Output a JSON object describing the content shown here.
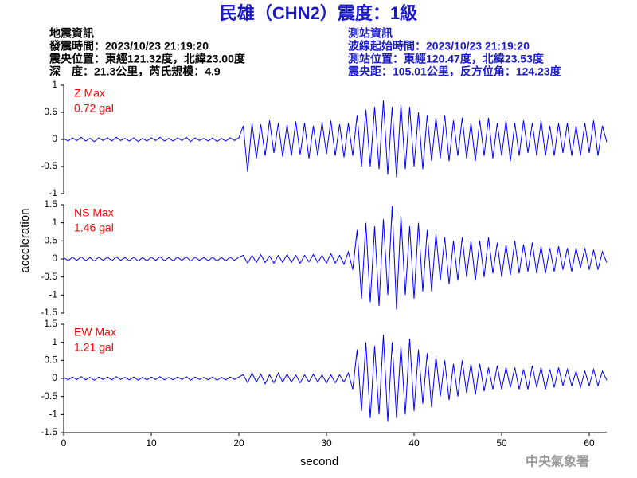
{
  "header": {
    "title": "民雄（CHN2）震度：1級",
    "event_info": [
      "地震資訊",
      "發震時間：2023/10/23 21:19:20",
      "震央位置：東經121.32度，北緯23.00度",
      "深　度：21.3公里，芮氏規模：4.9"
    ],
    "station_info": [
      "測站資訊",
      "波線起始時間：2023/10/23 21:19:20",
      "測站位置：東經120.47度，北緯23.53度",
      "震央距：105.01公里，反方位角：124.23度"
    ]
  },
  "ylabel": "acceleration",
  "watermark": "中央氣象署",
  "chart_data": [
    {
      "type": "line",
      "label": "Z Max",
      "max_label": "0.72 gal",
      "color": "#0000ff",
      "label_color": "#ff0000",
      "xlim": [
        0,
        62
      ],
      "ylim": [
        -1,
        1
      ],
      "yticks": [
        -1,
        -0.5,
        0,
        0.5,
        1
      ],
      "x": [
        0,
        0.5,
        1,
        1.5,
        2,
        2.5,
        3,
        3.5,
        4,
        4.5,
        5,
        5.5,
        6,
        6.5,
        7,
        7.5,
        8,
        8.5,
        9,
        9.5,
        10,
        10.5,
        11,
        11.5,
        12,
        12.5,
        13,
        13.5,
        14,
        14.5,
        15,
        15.5,
        16,
        16.5,
        17,
        17.5,
        18,
        18.5,
        19,
        19.5,
        20,
        20.5,
        21,
        21.5,
        22,
        22.5,
        23,
        23.5,
        24,
        24.5,
        25,
        25.5,
        26,
        26.5,
        27,
        27.5,
        28,
        28.5,
        29,
        29.5,
        30,
        30.5,
        31,
        31.5,
        32,
        32.5,
        33,
        33.5,
        34,
        34.5,
        35,
        35.5,
        36,
        36.5,
        37,
        37.5,
        38,
        38.5,
        39,
        39.5,
        40,
        40.5,
        41,
        41.5,
        42,
        42.5,
        43,
        43.5,
        44,
        44.5,
        45,
        45.5,
        46,
        46.5,
        47,
        47.5,
        48,
        48.5,
        49,
        49.5,
        50,
        50.5,
        51,
        51.5,
        52,
        52.5,
        53,
        53.5,
        54,
        54.5,
        55,
        55.5,
        56,
        56.5,
        57,
        57.5,
        58,
        58.5,
        59,
        59.5,
        60,
        60.5,
        61,
        61.5,
        62
      ],
      "values": [
        0.02,
        -0.03,
        0.03,
        -0.02,
        0.04,
        -0.03,
        0.02,
        -0.04,
        0.03,
        -0.02,
        0.03,
        -0.03,
        0.04,
        -0.02,
        0.02,
        -0.03,
        0.03,
        -0.04,
        0.02,
        -0.03,
        0.03,
        -0.02,
        0.04,
        -0.03,
        0.02,
        -0.03,
        0.03,
        -0.02,
        0.04,
        -0.04,
        0.03,
        -0.02,
        0.02,
        -0.03,
        0.03,
        -0.04,
        0.02,
        -0.03,
        0.03,
        -0.02,
        0.03,
        0.25,
        -0.6,
        0.3,
        -0.35,
        0.28,
        -0.3,
        0.35,
        -0.25,
        0.3,
        -0.32,
        0.27,
        -0.3,
        0.33,
        -0.28,
        0.3,
        -0.35,
        0.25,
        -0.3,
        0.32,
        -0.27,
        0.35,
        -0.3,
        0.28,
        -0.33,
        0.3,
        -0.3,
        0.45,
        -0.5,
        0.55,
        -0.5,
        0.6,
        -0.55,
        0.72,
        -0.65,
        0.6,
        -0.7,
        0.65,
        -0.55,
        0.6,
        -0.5,
        0.5,
        -0.55,
        0.45,
        -0.4,
        0.4,
        -0.35,
        0.45,
        -0.4,
        0.35,
        -0.3,
        0.4,
        -0.35,
        0.3,
        -0.4,
        0.35,
        -0.3,
        0.4,
        -0.35,
        0.3,
        -0.3,
        0.35,
        -0.4,
        0.3,
        -0.3,
        0.35,
        -0.25,
        0.3,
        -0.3,
        0.35,
        -0.3,
        0.25,
        -0.3,
        0.3,
        -0.25,
        0.3,
        -0.3,
        0.25,
        -0.3,
        0.3,
        -0.25,
        0.35,
        -0.3,
        0.25,
        -0.05
      ]
    },
    {
      "type": "line",
      "label": "NS Max",
      "max_label": "1.46 gal",
      "color": "#0000ff",
      "label_color": "#ff0000",
      "xlim": [
        0,
        62
      ],
      "ylim": [
        -1.5,
        1.5
      ],
      "yticks": [
        -1.5,
        -1,
        -0.5,
        0,
        0.5,
        1,
        1.5
      ],
      "x": [
        0,
        0.5,
        1,
        1.5,
        2,
        2.5,
        3,
        3.5,
        4,
        4.5,
        5,
        5.5,
        6,
        6.5,
        7,
        7.5,
        8,
        8.5,
        9,
        9.5,
        10,
        10.5,
        11,
        11.5,
        12,
        12.5,
        13,
        13.5,
        14,
        14.5,
        15,
        15.5,
        16,
        16.5,
        17,
        17.5,
        18,
        18.5,
        19,
        19.5,
        20,
        20.5,
        21,
        21.5,
        22,
        22.5,
        23,
        23.5,
        24,
        24.5,
        25,
        25.5,
        26,
        26.5,
        27,
        27.5,
        28,
        28.5,
        29,
        29.5,
        30,
        30.5,
        31,
        31.5,
        32,
        32.5,
        33,
        33.5,
        34,
        34.5,
        35,
        35.5,
        36,
        36.5,
        37,
        37.5,
        38,
        38.5,
        39,
        39.5,
        40,
        40.5,
        41,
        41.5,
        42,
        42.5,
        43,
        43.5,
        44,
        44.5,
        45,
        45.5,
        46,
        46.5,
        47,
        47.5,
        48,
        48.5,
        49,
        49.5,
        50,
        50.5,
        51,
        51.5,
        52,
        52.5,
        53,
        53.5,
        54,
        54.5,
        55,
        55.5,
        56,
        56.5,
        57,
        57.5,
        58,
        58.5,
        59,
        59.5,
        60,
        60.5,
        61,
        61.5,
        62
      ],
      "values": [
        0.04,
        -0.05,
        0.05,
        -0.04,
        0.06,
        -0.05,
        0.04,
        -0.06,
        0.05,
        -0.04,
        0.05,
        -0.05,
        0.06,
        -0.04,
        0.04,
        -0.05,
        0.05,
        -0.06,
        0.04,
        -0.05,
        0.05,
        -0.04,
        0.06,
        -0.05,
        0.04,
        -0.05,
        0.05,
        -0.04,
        0.06,
        -0.06,
        0.05,
        -0.04,
        0.04,
        -0.05,
        0.05,
        -0.06,
        0.04,
        -0.05,
        0.05,
        -0.04,
        0.05,
        0.1,
        -0.12,
        0.1,
        -0.1,
        0.12,
        -0.1,
        0.08,
        -0.12,
        0.1,
        -0.1,
        0.12,
        -0.1,
        0.1,
        -0.12,
        0.1,
        -0.08,
        0.12,
        -0.1,
        0.1,
        -0.12,
        0.15,
        -0.12,
        0.1,
        -0.15,
        0.2,
        -0.3,
        0.8,
        -1.1,
        1.0,
        -1.2,
        0.9,
        -1.3,
        1.1,
        -1.0,
        1.46,
        -1.4,
        1.2,
        -1.0,
        0.9,
        -1.1,
        1.0,
        -0.9,
        0.8,
        -0.9,
        0.7,
        -0.6,
        0.6,
        -0.7,
        0.5,
        -0.6,
        0.6,
        -0.5,
        0.5,
        -0.6,
        0.5,
        -0.5,
        0.6,
        -0.4,
        0.45,
        -0.5,
        0.4,
        -0.45,
        0.5,
        -0.4,
        0.4,
        -0.35,
        0.45,
        -0.4,
        0.35,
        -0.4,
        0.3,
        -0.35,
        0.35,
        -0.3,
        0.3,
        -0.35,
        0.3,
        -0.25,
        0.3,
        -0.3,
        0.25,
        -0.3,
        0.2,
        -0.1
      ]
    },
    {
      "type": "line",
      "label": "EW Max",
      "max_label": "1.21 gal",
      "color": "#0000ff",
      "label_color": "#ff0000",
      "xlabel": "second",
      "xlim": [
        0,
        62
      ],
      "xticks": [
        0,
        10,
        20,
        30,
        40,
        50,
        60
      ],
      "ylim": [
        -1.5,
        1.5
      ],
      "yticks": [
        -1.5,
        -1,
        -0.5,
        0,
        0.5,
        1,
        1.5
      ],
      "x": [
        0,
        0.5,
        1,
        1.5,
        2,
        2.5,
        3,
        3.5,
        4,
        4.5,
        5,
        5.5,
        6,
        6.5,
        7,
        7.5,
        8,
        8.5,
        9,
        9.5,
        10,
        10.5,
        11,
        11.5,
        12,
        12.5,
        13,
        13.5,
        14,
        14.5,
        15,
        15.5,
        16,
        16.5,
        17,
        17.5,
        18,
        18.5,
        19,
        19.5,
        20,
        20.5,
        21,
        21.5,
        22,
        22.5,
        23,
        23.5,
        24,
        24.5,
        25,
        25.5,
        26,
        26.5,
        27,
        27.5,
        28,
        28.5,
        29,
        29.5,
        30,
        30.5,
        31,
        31.5,
        32,
        32.5,
        33,
        33.5,
        34,
        34.5,
        35,
        35.5,
        36,
        36.5,
        37,
        37.5,
        38,
        38.5,
        39,
        39.5,
        40,
        40.5,
        41,
        41.5,
        42,
        42.5,
        43,
        43.5,
        44,
        44.5,
        45,
        45.5,
        46,
        46.5,
        47,
        47.5,
        48,
        48.5,
        49,
        49.5,
        50,
        50.5,
        51,
        51.5,
        52,
        52.5,
        53,
        53.5,
        54,
        54.5,
        55,
        55.5,
        56,
        56.5,
        57,
        57.5,
        58,
        58.5,
        59,
        59.5,
        60,
        60.5,
        61,
        61.5,
        62
      ],
      "values": [
        0.03,
        -0.04,
        0.04,
        -0.03,
        0.05,
        -0.04,
        0.03,
        -0.05,
        0.04,
        -0.03,
        0.04,
        -0.04,
        0.05,
        -0.03,
        0.03,
        -0.04,
        0.04,
        -0.05,
        0.03,
        -0.04,
        0.04,
        -0.03,
        0.05,
        -0.04,
        0.03,
        -0.04,
        0.04,
        -0.03,
        0.05,
        -0.05,
        0.04,
        -0.03,
        0.03,
        -0.04,
        0.04,
        -0.05,
        0.03,
        -0.04,
        0.04,
        -0.03,
        0.04,
        0.1,
        -0.12,
        0.15,
        -0.1,
        0.12,
        -0.15,
        0.1,
        -0.12,
        0.15,
        -0.1,
        0.12,
        -0.1,
        0.1,
        -0.12,
        0.1,
        -0.1,
        0.12,
        -0.1,
        0.1,
        -0.12,
        0.1,
        -0.12,
        0.1,
        -0.1,
        0.15,
        -0.3,
        0.8,
        -0.9,
        1.0,
        -1.1,
        0.9,
        -1.0,
        1.21,
        -1.2,
        1.0,
        -1.1,
        0.9,
        -1.0,
        1.1,
        -0.9,
        0.8,
        -0.7,
        0.7,
        -0.8,
        0.6,
        -0.5,
        0.5,
        -0.6,
        0.4,
        -0.5,
        0.5,
        -0.4,
        0.4,
        -0.45,
        0.4,
        -0.35,
        0.3,
        -0.3,
        0.35,
        -0.3,
        0.3,
        -0.25,
        0.3,
        -0.3,
        0.25,
        -0.3,
        0.35,
        -0.25,
        0.3,
        -0.3,
        0.25,
        -0.25,
        0.3,
        -0.2,
        0.25,
        -0.2,
        0.2,
        -0.25,
        0.2,
        -0.2,
        0.25,
        -0.2,
        0.2,
        -0.05
      ]
    }
  ]
}
